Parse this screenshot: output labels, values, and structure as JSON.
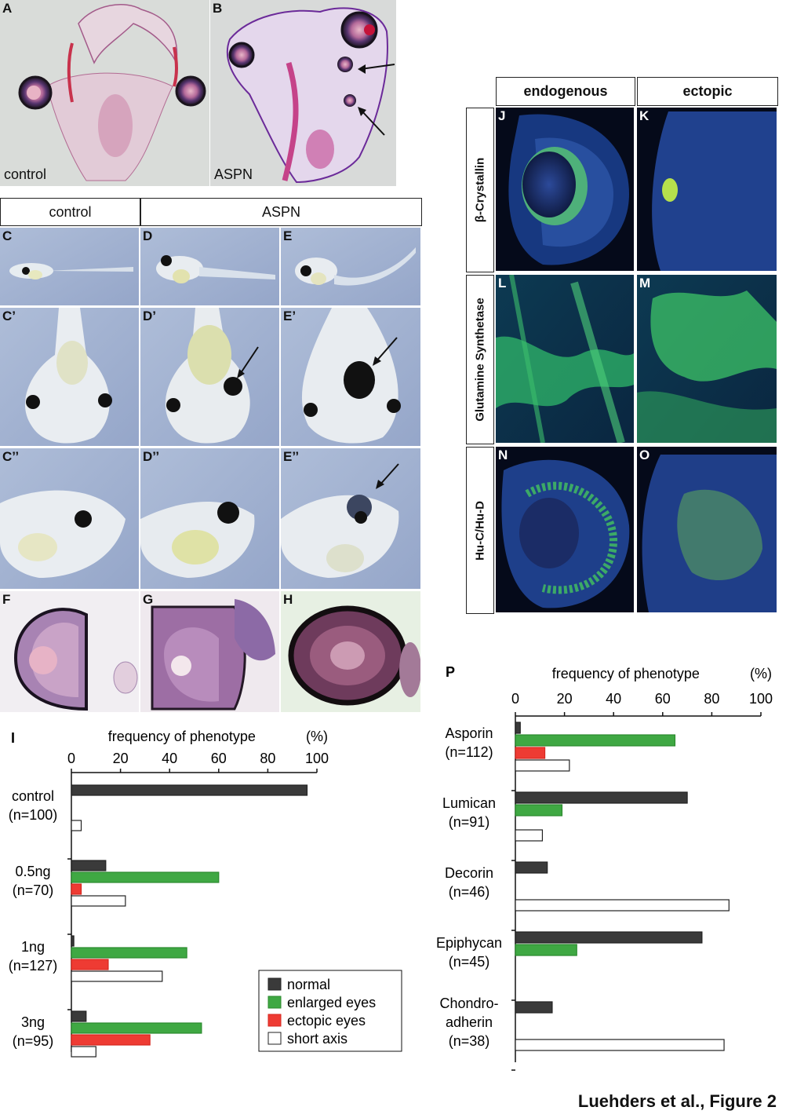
{
  "panels": {
    "A": {
      "label": "A",
      "caption": "control"
    },
    "B": {
      "label": "B",
      "caption": "ASPN"
    },
    "C": {
      "label": "C"
    },
    "D": {
      "label": "D"
    },
    "E": {
      "label": "E"
    },
    "C1": {
      "label": "C’"
    },
    "D1": {
      "label": "D’"
    },
    "E1": {
      "label": "E’"
    },
    "C2": {
      "label": "C’’"
    },
    "D2": {
      "label": "D’’"
    },
    "E2": {
      "label": "E’’"
    },
    "F": {
      "label": "F"
    },
    "G": {
      "label": "G"
    },
    "H": {
      "label": "H"
    },
    "J": {
      "label": "J"
    },
    "K": {
      "label": "K"
    },
    "L": {
      "label": "L"
    },
    "M": {
      "label": "M"
    },
    "N": {
      "label": "N"
    },
    "O": {
      "label": "O"
    }
  },
  "headers": {
    "control": "control",
    "aspn": "ASPN",
    "endogenous": "endogenous",
    "ectopic": "ectopic"
  },
  "row_labels": {
    "crystallin": "β-Crystallin",
    "glutamine": "Glutamine Synthetase",
    "huc": "Hu-C/Hu-D"
  },
  "colors": {
    "normal": "#3a3a3a",
    "enlarged": "#3fa843",
    "ectopic": "#ee3b33",
    "short_axis": "#ffffff"
  },
  "chart_data": [
    {
      "type": "bar",
      "orientation": "horizontal",
      "panel_label": "I",
      "title": "frequency of phenotype",
      "unit": "(%)",
      "xlim": [
        0,
        100
      ],
      "ticks": [
        0,
        20,
        40,
        60,
        80,
        100
      ],
      "categories": [
        "control\n(n=100)",
        "0.5ng\n(n=70)",
        "1ng\n(n=127)",
        "3ng\n(n=95)"
      ],
      "series": [
        {
          "name": "normal",
          "values": [
            96,
            14,
            1,
            6
          ]
        },
        {
          "name": "enlarged eyes",
          "values": [
            0,
            60,
            47,
            53
          ]
        },
        {
          "name": "ectopic eyes",
          "values": [
            0,
            4,
            15,
            32
          ]
        },
        {
          "name": "short axis",
          "values": [
            4,
            22,
            37,
            10
          ]
        }
      ],
      "legend": [
        "normal",
        "enlarged eyes",
        "ectopic eyes",
        "short axis"
      ]
    },
    {
      "type": "bar",
      "orientation": "horizontal",
      "panel_label": "P",
      "title": "frequency of phenotype",
      "unit": "(%)",
      "xlim": [
        0,
        100
      ],
      "ticks": [
        0,
        20,
        40,
        60,
        80,
        100
      ],
      "categories": [
        "Asporin\n(n=112)",
        "Lumican\n(n=91)",
        "Decorin\n(n=46)",
        "Epiphycan\n(n=45)",
        "Chondro-\nadherin\n(n=38)"
      ],
      "series": [
        {
          "name": "normal",
          "values": [
            2,
            70,
            13,
            76,
            15
          ]
        },
        {
          "name": "enlarged eyes",
          "values": [
            65,
            19,
            0,
            25,
            0
          ]
        },
        {
          "name": "ectopic eyes",
          "values": [
            12,
            0,
            0,
            0,
            0
          ]
        },
        {
          "name": "short axis",
          "values": [
            22,
            11,
            87,
            0,
            85
          ]
        }
      ]
    }
  ],
  "footer": "Luehders et al., Figure 2"
}
